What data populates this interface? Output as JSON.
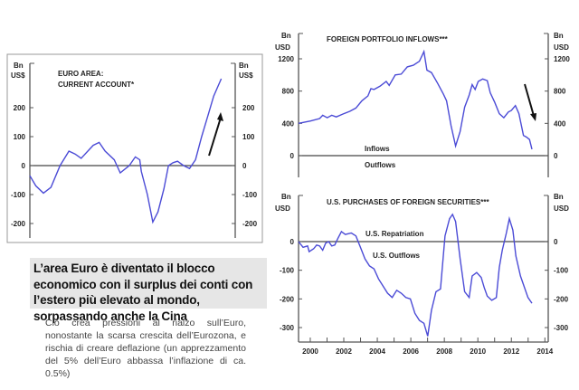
{
  "chart_data": [
    {
      "type": "line",
      "title": "EURO AREA: CURRENT ACCOUNT*",
      "ylabel": "Bn US$",
      "ylim": [
        -250,
        340
      ],
      "yticks": [
        200,
        100,
        0,
        -100,
        -200
      ],
      "xlim": [
        1999.5,
        2014.2
      ],
      "annotation": "upward arrow",
      "series": [
        {
          "name": "Current account",
          "x": [
            1999.5,
            1999.93,
            2000.47,
            2001.01,
            2001.66,
            2002.3,
            2002.74,
            2003.17,
            2004.03,
            2004.46,
            2004.89,
            2005.54,
            2005.97,
            2006.62,
            2007.05,
            2007.37,
            2007.48,
            2007.91,
            2008.3,
            2008.67,
            2009.1,
            2009.42,
            2009.75,
            2010.07,
            2010.5,
            2010.93,
            2011.36,
            2011.8,
            2012.23,
            2012.66,
            2013.2
          ],
          "values": [
            -35,
            -70,
            -95,
            -75,
            0,
            50,
            40,
            25,
            70,
            80,
            50,
            20,
            -25,
            0,
            30,
            20,
            -20,
            -100,
            -195,
            -160,
            -80,
            0,
            10,
            15,
            0,
            -10,
            20,
            100,
            170,
            240,
            300
          ]
        }
      ]
    },
    {
      "type": "line",
      "title": "FOREIGN PORTFOLIO INFLOWS***",
      "ylabel": "Bn USD",
      "ylim": [
        -120,
        1400
      ],
      "yticks": [
        1200,
        800,
        400,
        0
      ],
      "xlim": [
        1999.3,
        2014.2
      ],
      "labels": {
        "above": "Inflows",
        "below": "Outflows"
      },
      "annotation": "downward arrow",
      "series": [
        {
          "name": "Inflows",
          "x": [
            1999.3,
            2000.02,
            2000.56,
            2000.74,
            2001.01,
            2001.28,
            2001.55,
            2002.0,
            2002.36,
            2002.72,
            2003.08,
            2003.44,
            2003.62,
            2003.8,
            2004.16,
            2004.53,
            2004.71,
            2005.07,
            2005.43,
            2005.79,
            2006.15,
            2006.51,
            2006.78,
            2006.96,
            2007.23,
            2007.59,
            2007.95,
            2008.13,
            2008.4,
            2008.67,
            2008.94,
            2009.21,
            2009.48,
            2009.66,
            2009.84,
            2010.02,
            2010.29,
            2010.56,
            2010.74,
            2011.01,
            2011.28,
            2011.55,
            2011.82,
            2012.0,
            2012.24,
            2012.45,
            2012.72,
            2012.9,
            2013.08,
            2013.23
          ],
          "values": [
            400,
            430,
            460,
            500,
            470,
            500,
            480,
            520,
            550,
            590,
            680,
            740,
            830,
            820,
            860,
            920,
            870,
            1000,
            1010,
            1100,
            1120,
            1170,
            1290,
            1060,
            1030,
            900,
            760,
            680,
            370,
            120,
            300,
            600,
            750,
            880,
            820,
            920,
            950,
            930,
            780,
            660,
            520,
            470,
            540,
            560,
            620,
            520,
            250,
            230,
            200,
            80
          ]
        }
      ]
    },
    {
      "type": "line",
      "title": "U.S. PURCHASES OF FOREIGN SECURITIES***",
      "ylabel": "Bn USD",
      "ylim": [
        -350,
        70
      ],
      "yticks": [
        0,
        -100,
        -200,
        -300
      ],
      "xlim": [
        1999.3,
        2014.2
      ],
      "xticks": [
        "2000",
        "2002",
        "2004",
        "2006",
        "2008",
        "2010",
        "2012",
        "2014"
      ],
      "labels": {
        "above": "U.S. Repatriation",
        "below": "U.S. Outflows"
      },
      "series": [
        {
          "name": "U.S. purchases",
          "x": [
            1999.3,
            1999.57,
            1999.84,
            1999.93,
            2000.2,
            2000.38,
            2000.56,
            2000.74,
            2000.92,
            2001.1,
            2001.28,
            2001.46,
            2001.64,
            2001.86,
            2002.09,
            2002.45,
            2002.72,
            2002.99,
            2003.26,
            2003.53,
            2003.8,
            2004.07,
            2004.34,
            2004.61,
            2004.89,
            2005.16,
            2005.43,
            2005.7,
            2005.97,
            2006.24,
            2006.51,
            2006.78,
            2007.01,
            2007.23,
            2007.5,
            2007.77,
            2008.04,
            2008.31,
            2008.49,
            2008.67,
            2008.94,
            2009.21,
            2009.48,
            2009.66,
            2009.93,
            2010.2,
            2010.38,
            2010.56,
            2010.83,
            2011.1,
            2011.28,
            2011.46,
            2011.7,
            2011.88,
            2012.09,
            2012.27,
            2012.54,
            2012.72,
            2012.99,
            2013.23
          ],
          "values": [
            0,
            -20,
            -15,
            -35,
            -25,
            -12,
            -15,
            -30,
            -5,
            0,
            -15,
            -12,
            10,
            35,
            25,
            30,
            20,
            -20,
            -60,
            -85,
            -95,
            -130,
            -155,
            -180,
            -195,
            -170,
            -180,
            -195,
            -200,
            -250,
            -275,
            -285,
            -330,
            -240,
            -175,
            -165,
            20,
            80,
            95,
            70,
            -60,
            -175,
            -195,
            -120,
            -108,
            -125,
            -160,
            -190,
            -205,
            -195,
            -90,
            -30,
            30,
            80,
            40,
            -50,
            -120,
            -150,
            -195,
            -215
          ]
        }
      ]
    }
  ],
  "units": {
    "bn": "Bn",
    "usd": "US$",
    "usd2": "USD"
  },
  "left_title": [
    "EURO AREA:",
    "CURRENT ACCOUNT*"
  ],
  "headline": "L’area Euro è diventato il blocco economico con il surplus dei conti con l’estero più elevato al mondo, sorpassando anche la Cina",
  "body": "Ciò crea pressioni al rialzo sull’Euro, nonostante la scarsa crescita dell’Eurozona, e rischia di creare deflazione (un apprezzamento del 5% dell’Euro abbassa l’inflazione di ca. 0.5%)",
  "colors": {
    "line": "#4b4bd6",
    "axis": "#555"
  }
}
